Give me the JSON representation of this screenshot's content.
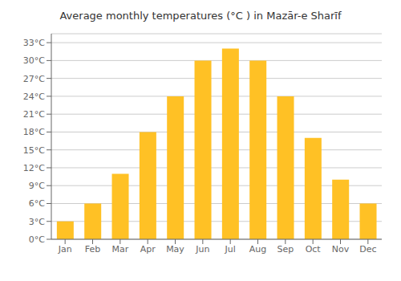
{
  "chart_data": {
    "type": "bar",
    "title": "Average monthly temperatures (°C ) in Mazār-e Sharīf",
    "categories": [
      "Jan",
      "Feb",
      "Mar",
      "Apr",
      "May",
      "Jun",
      "Jul",
      "Aug",
      "Sep",
      "Oct",
      "Nov",
      "Dec"
    ],
    "values": [
      3,
      6,
      11,
      18,
      24,
      30,
      32,
      30,
      24,
      17,
      10,
      6
    ],
    "color": "#FFC125",
    "ylim": [
      0,
      34.5
    ],
    "yticks": [
      {
        "value": 0,
        "label": "0°C"
      },
      {
        "value": 3,
        "label": "3°C"
      },
      {
        "value": 6,
        "label": "6°C"
      },
      {
        "value": 9,
        "label": "9°C"
      },
      {
        "value": 12,
        "label": "12°C"
      },
      {
        "value": 15,
        "label": "15°C"
      },
      {
        "value": 18,
        "label": "18°C"
      },
      {
        "value": 21,
        "label": "21°C"
      },
      {
        "value": 24,
        "label": "24°C"
      },
      {
        "value": 27,
        "label": "27°C"
      },
      {
        "value": 30,
        "label": "30°C"
      },
      {
        "value": 33,
        "label": "33°C"
      }
    ],
    "grid": true
  }
}
